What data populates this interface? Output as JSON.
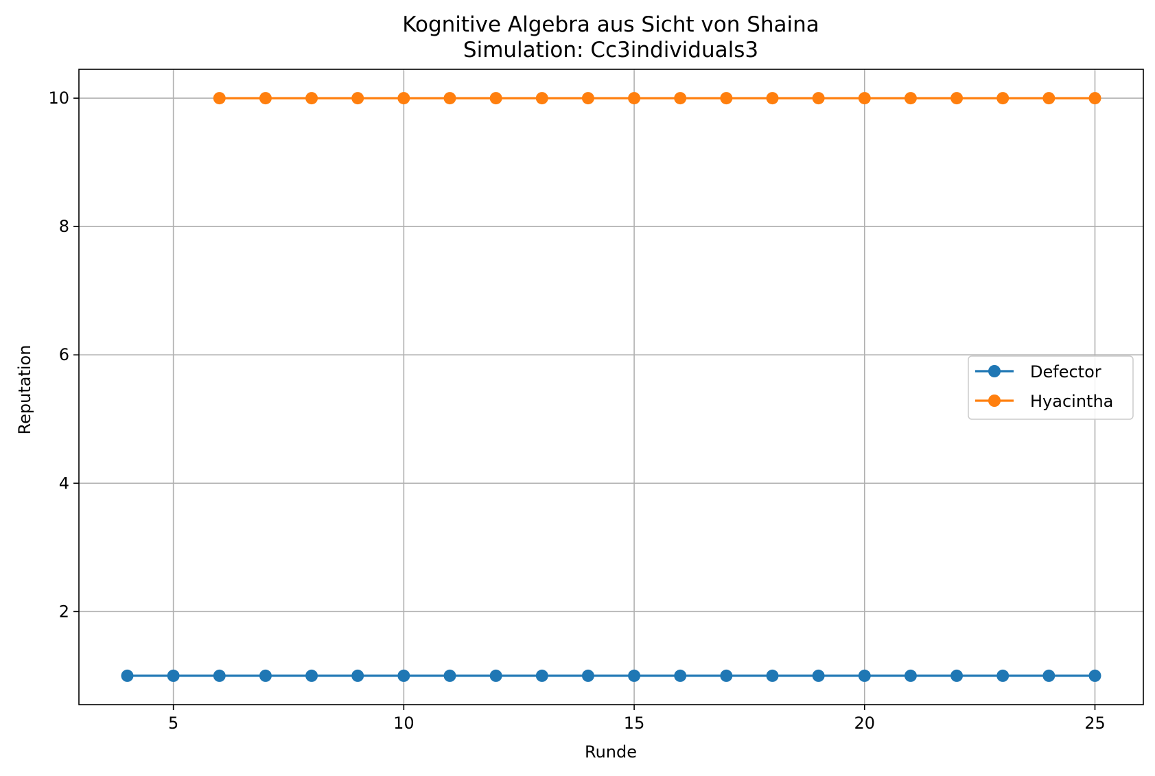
{
  "chart_data": {
    "type": "line",
    "title": "Kognitive Algebra aus Sicht von Shaina",
    "subtitle": "Simulation: Cc3individuals3",
    "xlabel": "Runde",
    "ylabel": "Reputation",
    "xlim": [
      2.95,
      26.05
    ],
    "ylim": [
      0.55,
      10.45
    ],
    "xticks": [
      5,
      10,
      15,
      20,
      25
    ],
    "yticks": [
      2,
      4,
      6,
      8,
      10
    ],
    "grid": true,
    "legend_position": "center-right",
    "series": [
      {
        "name": "Defector",
        "color": "#1f77b4",
        "marker": "circle",
        "x": [
          4,
          5,
          6,
          7,
          8,
          9,
          10,
          11,
          12,
          13,
          14,
          15,
          16,
          17,
          18,
          19,
          20,
          21,
          22,
          23,
          24,
          25
        ],
        "y": [
          1,
          1,
          1,
          1,
          1,
          1,
          1,
          1,
          1,
          1,
          1,
          1,
          1,
          1,
          1,
          1,
          1,
          1,
          1,
          1,
          1,
          1
        ]
      },
      {
        "name": "Hyacintha",
        "color": "#ff7f0e",
        "marker": "circle",
        "x": [
          6,
          7,
          8,
          9,
          10,
          11,
          12,
          13,
          14,
          15,
          16,
          17,
          18,
          19,
          20,
          21,
          22,
          23,
          24,
          25
        ],
        "y": [
          10,
          10,
          10,
          10,
          10,
          10,
          10,
          10,
          10,
          10,
          10,
          10,
          10,
          10,
          10,
          10,
          10,
          10,
          10,
          10
        ]
      }
    ]
  }
}
